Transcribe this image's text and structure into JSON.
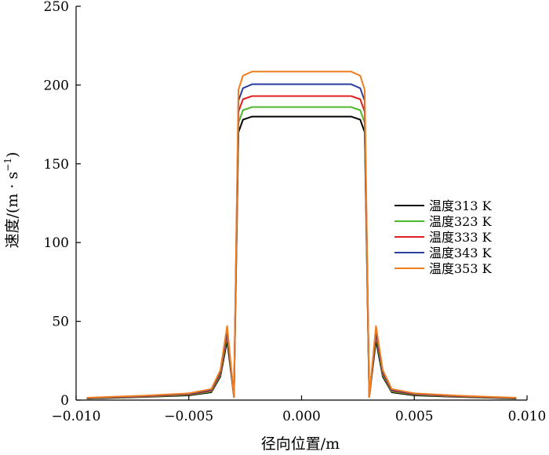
{
  "chart_data": {
    "type": "line",
    "title": "",
    "xlabel": "径向位置/m",
    "ylabel": "速度/(m·s⁻¹)",
    "xlim": [
      -0.01,
      0.01
    ],
    "ylim": [
      0,
      250
    ],
    "xticks": [
      -0.01,
      -0.005,
      0.0,
      0.005,
      0.01
    ],
    "yticks": [
      0,
      50,
      100,
      150,
      200,
      250
    ],
    "xtick_labels": [
      "−0.010",
      "−0.005",
      "0.000",
      "0.005",
      "0.010"
    ],
    "ytick_labels": [
      "0",
      "50",
      "100",
      "150",
      "200",
      "250"
    ],
    "ylabel_parts": {
      "main": "速度/(m · s",
      "sup": "−1",
      "close": ")"
    },
    "grid": false,
    "legend_position": "right",
    "x": [
      -0.0095,
      -0.007,
      -0.005,
      -0.004,
      -0.0036,
      -0.0033,
      -0.003,
      -0.0028,
      -0.0026,
      -0.0022,
      -0.001,
      0.0,
      0.001,
      0.0022,
      0.0026,
      0.0028,
      0.003,
      0.0033,
      0.0036,
      0.004,
      0.005,
      0.007,
      0.0095
    ],
    "series": [
      {
        "name": "温度313 K",
        "color": "#000000",
        "values": [
          1,
          2,
          3,
          5,
          15,
          38,
          2,
          170,
          178,
          180,
          180,
          180,
          180,
          180,
          178,
          170,
          2,
          38,
          15,
          5,
          3,
          2,
          1
        ]
      },
      {
        "name": "温度323 K",
        "color": "#4eb82c",
        "values": [
          1.2,
          2.2,
          3.4,
          5.5,
          16,
          41,
          2,
          176,
          184,
          186,
          186,
          186,
          186,
          186,
          184,
          176,
          2,
          41,
          16,
          5.5,
          3.4,
          2.2,
          1.2
        ]
      },
      {
        "name": "温度333 K",
        "color": "#e02020",
        "values": [
          1.3,
          2.4,
          3.7,
          6,
          17,
          43,
          2,
          183,
          191,
          193,
          193,
          193,
          193,
          193,
          191,
          183,
          2,
          43,
          17,
          6,
          3.7,
          2.4,
          1.3
        ]
      },
      {
        "name": "温度343 K",
        "color": "#2a3fa0",
        "values": [
          1.4,
          2.6,
          4,
          6.5,
          18,
          45,
          2,
          190,
          198,
          200.5,
          200.5,
          200.5,
          200.5,
          200.5,
          198,
          190,
          2,
          45,
          18,
          6.5,
          4,
          2.6,
          1.4
        ]
      },
      {
        "name": "温度353 K",
        "color": "#f07d20",
        "values": [
          1.5,
          2.8,
          4.3,
          7,
          19,
          47,
          2,
          197,
          206,
          208.5,
          208.5,
          208.5,
          208.5,
          208.5,
          206,
          197,
          2,
          47,
          19,
          7,
          4.3,
          2.8,
          1.5
        ]
      }
    ]
  }
}
